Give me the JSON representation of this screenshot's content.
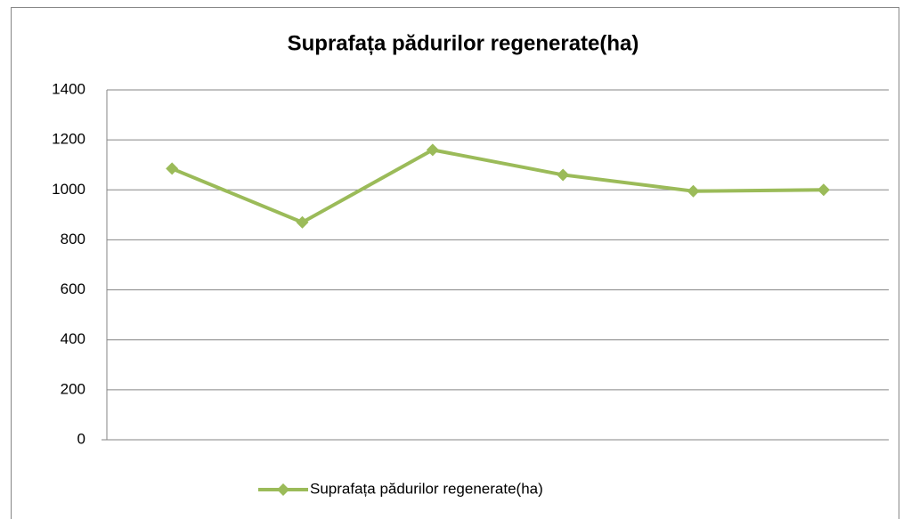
{
  "chart_data": {
    "type": "line",
    "title": "Suprafața pădurilor regenerate(ha)",
    "categories": [
      null,
      null,
      null,
      null,
      null,
      null
    ],
    "series": [
      {
        "name": "Suprafața pădurilor regenerate(ha)",
        "color": "#9bbb59",
        "values": [
          1085,
          870,
          1160,
          1060,
          995,
          1000
        ]
      }
    ],
    "ylim": [
      0,
      1400
    ],
    "yticks": [
      0,
      200,
      400,
      600,
      800,
      1000,
      1200,
      1400
    ],
    "grid": true,
    "legend": "bottom"
  }
}
